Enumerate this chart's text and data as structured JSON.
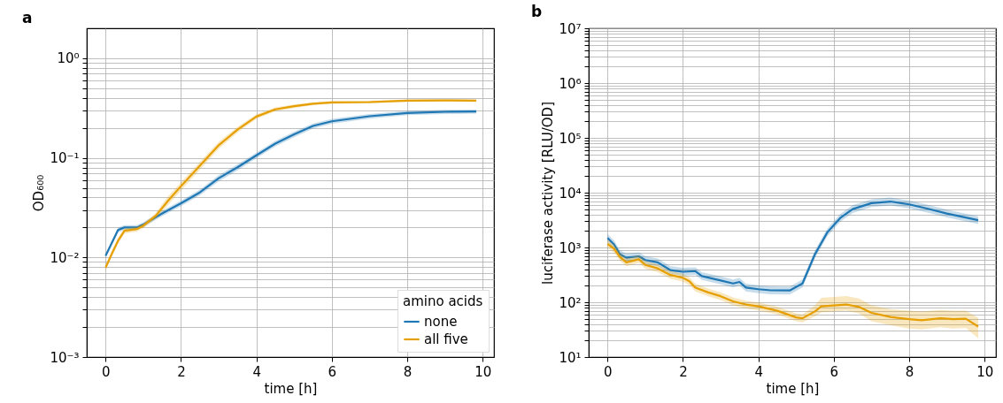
{
  "chart_data": [
    {
      "type": "line",
      "title": "a",
      "xlabel": "time [h]",
      "ylabel": "OD₆₀₀",
      "legend_title": "amino acids",
      "legend": "bottom right",
      "log": true,
      "grid": true,
      "xlim": [
        -0.5,
        10.3
      ],
      "xticks": [
        0,
        2,
        4,
        6,
        8,
        10
      ],
      "ylim": [
        0.001,
        2
      ],
      "yticks": [
        {
          "value": 0.001,
          "label": "10⁻³"
        },
        {
          "value": 0.002,
          "label": null
        },
        {
          "value": 0.003,
          "label": null
        },
        {
          "value": 0.004,
          "label": null
        },
        {
          "value": 0.005,
          "label": null
        },
        {
          "value": 0.006,
          "label": null
        },
        {
          "value": 0.007,
          "label": null
        },
        {
          "value": 0.008,
          "label": null
        },
        {
          "value": 0.009,
          "label": null
        },
        {
          "value": 0.01,
          "label": "10⁻²"
        },
        {
          "value": 0.02,
          "label": null
        },
        {
          "value": 0.03,
          "label": null
        },
        {
          "value": 0.04,
          "label": null
        },
        {
          "value": 0.05,
          "label": null
        },
        {
          "value": 0.06,
          "label": null
        },
        {
          "value": 0.07,
          "label": null
        },
        {
          "value": 0.08,
          "label": null
        },
        {
          "value": 0.09,
          "label": null
        },
        {
          "value": 0.1,
          "label": "10⁻¹"
        },
        {
          "value": 0.2,
          "label": null
        },
        {
          "value": 0.3,
          "label": null
        },
        {
          "value": 0.4,
          "label": null
        },
        {
          "value": 0.5,
          "label": null
        },
        {
          "value": 0.6,
          "label": null
        },
        {
          "value": 0.7,
          "label": null
        },
        {
          "value": 0.8,
          "label": null
        },
        {
          "value": 0.9,
          "label": null
        },
        {
          "value": 1,
          "label": "10⁰"
        }
      ],
      "series": [
        {
          "name": "none",
          "color": "#1f77b4",
          "x": [
            0,
            0.33,
            0.5,
            0.83,
            1,
            1.5,
            2,
            2.5,
            3,
            3.5,
            4,
            4.5,
            5,
            5.5,
            6,
            7,
            8,
            9,
            9.83
          ],
          "values": [
            0.0104,
            0.0189,
            0.02,
            0.02,
            0.0214,
            0.0277,
            0.035,
            0.045,
            0.0625,
            0.0805,
            0.106,
            0.139,
            0.172,
            0.209,
            0.233,
            0.262,
            0.282,
            0.29,
            0.292
          ],
          "lower": [
            0.0098,
            0.0178,
            0.0189,
            0.0189,
            0.0202,
            0.026,
            0.0328,
            0.042,
            0.058,
            0.075,
            0.099,
            0.13,
            0.161,
            0.197,
            0.22,
            0.248,
            0.268,
            0.276,
            0.278
          ],
          "upper": [
            0.011,
            0.02,
            0.0211,
            0.0211,
            0.0226,
            0.0294,
            0.0372,
            0.048,
            0.067,
            0.086,
            0.113,
            0.148,
            0.183,
            0.221,
            0.246,
            0.276,
            0.296,
            0.304,
            0.306
          ]
        },
        {
          "name": "all five",
          "color": "#e69f00",
          "x": [
            0,
            0.17,
            0.33,
            0.5,
            0.83,
            1,
            1.33,
            1.67,
            2,
            2.5,
            3,
            3.5,
            4,
            4.5,
            5,
            5.5,
            6,
            7,
            8,
            9,
            9.83
          ],
          "values": [
            0.0079,
            0.011,
            0.0147,
            0.0185,
            0.0193,
            0.0208,
            0.0262,
            0.0376,
            0.052,
            0.0834,
            0.134,
            0.192,
            0.26,
            0.307,
            0.33,
            0.35,
            0.36,
            0.363,
            0.376,
            0.378,
            0.376
          ],
          "lower": [
            0.0074,
            0.0102,
            0.0137,
            0.0174,
            0.0182,
            0.0196,
            0.0245,
            0.034,
            0.047,
            0.076,
            0.123,
            0.179,
            0.246,
            0.293,
            0.317,
            0.338,
            0.349,
            0.352,
            0.365,
            0.367,
            0.365
          ],
          "upper": [
            0.0084,
            0.0118,
            0.0157,
            0.0196,
            0.0204,
            0.022,
            0.028,
            0.0416,
            0.057,
            0.091,
            0.145,
            0.205,
            0.274,
            0.321,
            0.343,
            0.362,
            0.371,
            0.374,
            0.387,
            0.389,
            0.387
          ]
        }
      ]
    },
    {
      "type": "line",
      "title": "b",
      "xlabel": "time [h]",
      "ylabel": "luciferase activity [RLU/OD]",
      "log": true,
      "grid": true,
      "xlim": [
        -0.5,
        10.3
      ],
      "xticks": [
        0,
        2,
        4,
        6,
        8,
        10
      ],
      "ylim": [
        10,
        10000000
      ],
      "yticks": [
        {
          "value": 10,
          "label": "10¹"
        },
        {
          "value": 20,
          "label": null
        },
        {
          "value": 30,
          "label": null
        },
        {
          "value": 40,
          "label": null
        },
        {
          "value": 50,
          "label": null
        },
        {
          "value": 60,
          "label": null
        },
        {
          "value": 70,
          "label": null
        },
        {
          "value": 80,
          "label": null
        },
        {
          "value": 90,
          "label": null
        },
        {
          "value": 100,
          "label": "10²"
        },
        {
          "value": 200,
          "label": null
        },
        {
          "value": 300,
          "label": null
        },
        {
          "value": 400,
          "label": null
        },
        {
          "value": 500,
          "label": null
        },
        {
          "value": 600,
          "label": null
        },
        {
          "value": 700,
          "label": null
        },
        {
          "value": 800,
          "label": null
        },
        {
          "value": 900,
          "label": null
        },
        {
          "value": 1000,
          "label": "10³"
        },
        {
          "value": 2000,
          "label": null
        },
        {
          "value": 3000,
          "label": null
        },
        {
          "value": 4000,
          "label": null
        },
        {
          "value": 5000,
          "label": null
        },
        {
          "value": 6000,
          "label": null
        },
        {
          "value": 7000,
          "label": null
        },
        {
          "value": 8000,
          "label": null
        },
        {
          "value": 9000,
          "label": null
        },
        {
          "value": 10000,
          "label": "10⁴"
        },
        {
          "value": 20000,
          "label": null
        },
        {
          "value": 30000,
          "label": null
        },
        {
          "value": 40000,
          "label": null
        },
        {
          "value": 50000,
          "label": null
        },
        {
          "value": 60000,
          "label": null
        },
        {
          "value": 70000,
          "label": null
        },
        {
          "value": 80000,
          "label": null
        },
        {
          "value": 90000,
          "label": null
        },
        {
          "value": 100000,
          "label": "10⁵"
        },
        {
          "value": 200000,
          "label": null
        },
        {
          "value": 300000,
          "label": null
        },
        {
          "value": 400000,
          "label": null
        },
        {
          "value": 500000,
          "label": null
        },
        {
          "value": 600000,
          "label": null
        },
        {
          "value": 700000,
          "label": null
        },
        {
          "value": 800000,
          "label": null
        },
        {
          "value": 900000,
          "label": null
        },
        {
          "value": 1000000,
          "label": "10⁶"
        },
        {
          "value": 2000000,
          "label": null
        },
        {
          "value": 3000000,
          "label": null
        },
        {
          "value": 4000000,
          "label": null
        },
        {
          "value": 5000000,
          "label": null
        },
        {
          "value": 6000000,
          "label": null
        },
        {
          "value": 7000000,
          "label": null
        },
        {
          "value": 8000000,
          "label": null
        },
        {
          "value": 9000000,
          "label": null
        },
        {
          "value": 10000000,
          "label": "10⁷"
        }
      ],
      "series": [
        {
          "color": "#1f77b4",
          "x": [
            0,
            0.17,
            0.33,
            0.5,
            0.83,
            1,
            1.33,
            1.67,
            2,
            2.33,
            2.5,
            3,
            3.33,
            3.5,
            3.67,
            4,
            4.33,
            4.83,
            5.17,
            5.5,
            5.83,
            6.17,
            6.5,
            7,
            7.5,
            8,
            8.5,
            9,
            9.83
          ],
          "values": [
            1490,
            1140,
            750,
            650,
            690,
            590,
            535,
            385,
            360,
            370,
            300,
            250,
            220,
            235,
            185,
            173,
            165,
            164,
            220,
            750,
            1890,
            3450,
            5000,
            6440,
            6890,
            6110,
            5070,
            4150,
            3140
          ],
          "lower": [
            1270,
            970,
            640,
            550,
            590,
            500,
            455,
            330,
            305,
            315,
            255,
            213,
            187,
            200,
            157,
            147,
            140,
            139,
            187,
            640,
            1610,
            2930,
            4250,
            5470,
            5860,
            5190,
            4310,
            3530,
            2670
          ],
          "upper": [
            1760,
            1350,
            885,
            770,
            815,
            695,
            630,
            455,
            425,
            435,
            355,
            295,
            260,
            277,
            218,
            204,
            195,
            194,
            260,
            885,
            2230,
            4070,
            5900,
            7600,
            8130,
            7210,
            5980,
            4900,
            3700
          ]
        },
        {
          "color": "#e69f00",
          "x": [
            0,
            0.17,
            0.33,
            0.5,
            0.83,
            1,
            1.33,
            1.67,
            2,
            2.17,
            2.33,
            2.67,
            3,
            3.33,
            3.67,
            4,
            4.5,
            5,
            5.17,
            5.5,
            5.67,
            6.33,
            6.67,
            7,
            7.5,
            8,
            8.33,
            8.83,
            9.17,
            9.5,
            9.83
          ],
          "values": [
            1170,
            950,
            670,
            535,
            610,
            480,
            415,
            314,
            279,
            241,
            185,
            151,
            129,
            104,
            91,
            84,
            70,
            53,
            51,
            68,
            84,
            91,
            82,
            64,
            54,
            49,
            47,
            51,
            49,
            50,
            36
          ],
          "lower": [
            1000,
            810,
            570,
            455,
            520,
            410,
            355,
            267,
            237,
            205,
            157,
            128,
            110,
            88,
            77,
            71,
            60,
            45,
            43,
            55,
            65,
            70,
            62,
            45,
            38,
            33,
            32,
            35,
            33,
            34,
            22
          ],
          "upper": [
            1380,
            1120,
            790,
            630,
            720,
            565,
            490,
            370,
            330,
            285,
            218,
            178,
            152,
            123,
            107,
            99,
            83,
            63,
            60,
            88,
            120,
            130,
            117,
            88,
            75,
            70,
            68,
            72,
            70,
            70,
            52
          ]
        }
      ]
    }
  ]
}
